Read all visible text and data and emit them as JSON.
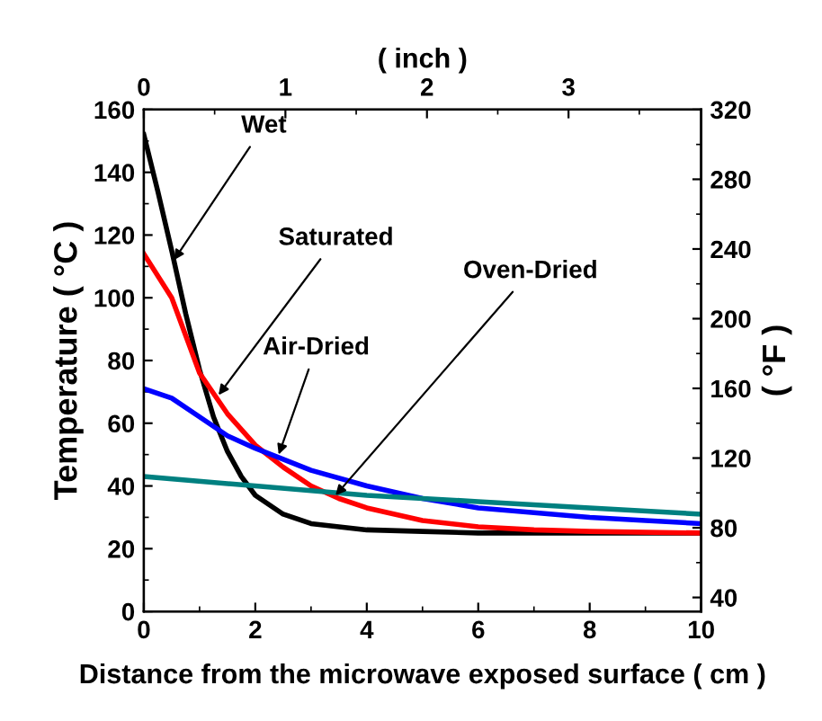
{
  "chart_data": {
    "type": "line",
    "xlabel": "Distance from the microwave exposed surface ( cm )",
    "ylabel": "Temperature ( °C )",
    "y2label": "( °F )",
    "x2label": "( inch )",
    "xlim": [
      0,
      10
    ],
    "xticks": [
      0,
      2,
      4,
      6,
      8,
      10
    ],
    "ylim": [
      0,
      160
    ],
    "yticks": [
      0,
      20,
      40,
      60,
      80,
      100,
      120,
      140,
      160
    ],
    "y2lim": [
      32,
      320
    ],
    "y2ticks": [
      40,
      80,
      120,
      160,
      200,
      240,
      280,
      320
    ],
    "x2lim": [
      0,
      3.937
    ],
    "x2ticks": [
      0,
      1,
      2,
      3
    ],
    "grid": false,
    "legend": false,
    "marker": "none",
    "line_style": "solid",
    "series": [
      {
        "color": "#000000",
        "x": [
          0,
          0.25,
          0.5,
          0.75,
          1,
          1.25,
          1.5,
          1.75,
          2,
          2.5,
          3,
          4,
          5,
          6,
          10
        ],
        "values": [
          152,
          134,
          115,
          95,
          77,
          62,
          51,
          43,
          37,
          31,
          28,
          26,
          25.5,
          25,
          25
        ]
      },
      {
        "color": "#ff0000",
        "x": [
          0,
          0.5,
          1,
          1.5,
          2,
          2.5,
          3,
          3.5,
          4,
          5,
          6,
          7,
          8,
          10
        ],
        "values": [
          114,
          100,
          76,
          63,
          53,
          46,
          40,
          36,
          33,
          29,
          27,
          26,
          25.5,
          25
        ]
      },
      {
        "color": "#0000ff",
        "x": [
          0,
          0.5,
          1,
          1.5,
          2,
          2.5,
          3,
          4,
          5,
          6,
          7,
          8,
          9,
          10
        ],
        "values": [
          71,
          68,
          62,
          56,
          52,
          48.5,
          45,
          40,
          36,
          33,
          31.5,
          30,
          29,
          28
        ]
      },
      {
        "color": "#008080",
        "x": [
          0,
          2,
          4,
          6,
          8,
          10
        ],
        "values": [
          43,
          40,
          37,
          35,
          33,
          31
        ]
      }
    ],
    "annotations": [
      {
        "text": "Wet",
        "x": 0.54,
        "y": 112
      },
      {
        "text": "Saturated",
        "x": 1.34,
        "y": 69
      },
      {
        "text": "Air-Dried",
        "x": 2.42,
        "y": 50
      },
      {
        "text": "Oven-Dried",
        "x": 3.44,
        "y": 37
      }
    ]
  }
}
